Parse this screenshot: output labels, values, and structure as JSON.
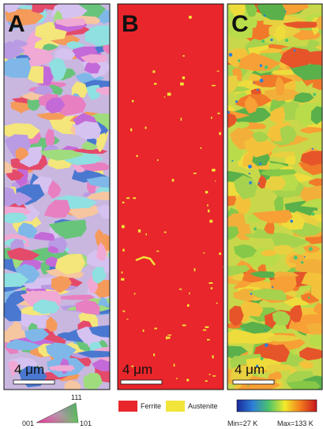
{
  "panels": [
    {
      "label": "A",
      "scale_bar": "4 μm"
    },
    {
      "label": "B",
      "scale_bar": "4 μm"
    },
    {
      "label": "C",
      "scale_bar": "4 μm"
    }
  ],
  "legend": {
    "ipf": {
      "top": "111",
      "left": "001",
      "right": "101"
    },
    "phases": [
      "Ferrite",
      "Austenite"
    ],
    "temperature": {
      "min": "Min=27 K",
      "max": "Max=133 K"
    }
  }
}
